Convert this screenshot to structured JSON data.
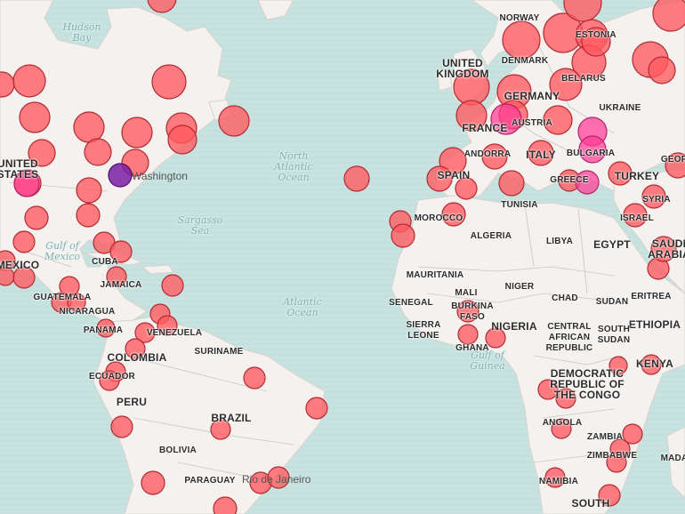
{
  "colors": {
    "ocean": "#c8e3df",
    "land": "#f4f1ee",
    "border": "#c9c5c2",
    "marker_fill": "#ff5a5f",
    "marker_stroke": "#b32a33",
    "marker_pink": "#ff3c96",
    "marker_purple": "#7a1fa3"
  },
  "water_labels": [
    {
      "id": "hudson-bay",
      "text": "Hudson\nBay"
    },
    {
      "id": "north-atlantic",
      "text": "North\nAtlantic\nOcean"
    },
    {
      "id": "sargasso",
      "text": "Sargasso\nSea"
    },
    {
      "id": "gulf-mexico",
      "text": "Gulf of\nMexico"
    },
    {
      "id": "atlantic",
      "text": "Atlantic\nOcean"
    },
    {
      "id": "gulf-guinea",
      "text": "Gulf of\nGuinea"
    }
  ],
  "country_labels": [
    {
      "id": "norway",
      "text": "NORWAY"
    },
    {
      "id": "estonia",
      "text": "ESTONIA"
    },
    {
      "id": "uk",
      "text": "UNITED\nKINGDOM",
      "big": true
    },
    {
      "id": "denmark",
      "text": "DENMARK"
    },
    {
      "id": "belarus",
      "text": "BELARUS"
    },
    {
      "id": "germany",
      "text": "GERMANY",
      "big": true
    },
    {
      "id": "ukraine",
      "text": "UKRAINE"
    },
    {
      "id": "austria",
      "text": "AUSTRIA"
    },
    {
      "id": "france",
      "text": "FRANCE",
      "big": true
    },
    {
      "id": "andorra",
      "text": "ANDORRA"
    },
    {
      "id": "italy",
      "text": "ITALY",
      "big": true
    },
    {
      "id": "bulgaria",
      "text": "BULGARIA"
    },
    {
      "id": "spain",
      "text": "SPAIN",
      "big": true
    },
    {
      "id": "greece",
      "text": "GREECE"
    },
    {
      "id": "turkey",
      "text": "TURKEY",
      "big": true
    },
    {
      "id": "georgia",
      "text": "GEOR"
    },
    {
      "id": "tunisia",
      "text": "TUNISIA"
    },
    {
      "id": "syria",
      "text": "SYRIA"
    },
    {
      "id": "israel",
      "text": "ISRAEL"
    },
    {
      "id": "morocco",
      "text": "MOROCCO"
    },
    {
      "id": "algeria",
      "text": "ALGERIA"
    },
    {
      "id": "libya",
      "text": "LIBYA"
    },
    {
      "id": "egypt",
      "text": "EGYPT",
      "big": true
    },
    {
      "id": "saudi",
      "text": "SAUDI\nARABIA",
      "big": true
    },
    {
      "id": "mauritania",
      "text": "MAURITANIA"
    },
    {
      "id": "mali",
      "text": "MALI"
    },
    {
      "id": "niger",
      "text": "NIGER"
    },
    {
      "id": "chad",
      "text": "CHAD"
    },
    {
      "id": "sudan",
      "text": "SUDAN"
    },
    {
      "id": "eritrea",
      "text": "ERITREA"
    },
    {
      "id": "senegal",
      "text": "SENEGAL"
    },
    {
      "id": "burkina",
      "text": "BURKINA\nFASO"
    },
    {
      "id": "ethiopia",
      "text": "ETHIOPIA",
      "big": true
    },
    {
      "id": "sierra-leone",
      "text": "SIERRA\nLEONE"
    },
    {
      "id": "nigeria",
      "text": "NIGERIA",
      "big": true
    },
    {
      "id": "car",
      "text": "CENTRAL\nAFRICAN\nREPUBLIC"
    },
    {
      "id": "south-sudan",
      "text": "SOUTH\nSUDAN"
    },
    {
      "id": "ghana",
      "text": "GHANA"
    },
    {
      "id": "drc",
      "text": "DEMOCRATIC\nREPUBLIC OF\nTHE CONGO",
      "big": true
    },
    {
      "id": "kenya",
      "text": "KENYA",
      "big": true
    },
    {
      "id": "angola",
      "text": "ANGOLA"
    },
    {
      "id": "zambia",
      "text": "ZAMBIA"
    },
    {
      "id": "zimbabwe",
      "text": "ZIMBABWE"
    },
    {
      "id": "madagascar",
      "text": "MADA"
    },
    {
      "id": "namibia",
      "text": "NAMIBIA"
    },
    {
      "id": "south-africa",
      "text": "SOUTH",
      "big": true
    },
    {
      "id": "usa",
      "text": "UNITED\nSTATES",
      "big": true
    },
    {
      "id": "mexico",
      "text": "MEXICO",
      "big": true
    },
    {
      "id": "cuba",
      "text": "CUBA"
    },
    {
      "id": "jamaica",
      "text": "JAMAICA"
    },
    {
      "id": "guatemala",
      "text": "GUATEMALA"
    },
    {
      "id": "nicaragua",
      "text": "NICARAGUA"
    },
    {
      "id": "panama",
      "text": "PANAMA"
    },
    {
      "id": "venezuela",
      "text": "VENEZUELA"
    },
    {
      "id": "suriname",
      "text": "SURINAME"
    },
    {
      "id": "colombia",
      "text": "COLOMBIA",
      "big": true
    },
    {
      "id": "ecuador",
      "text": "ECUADOR"
    },
    {
      "id": "peru",
      "text": "PERU",
      "big": true
    },
    {
      "id": "brazil",
      "text": "BRAZIL",
      "big": true
    },
    {
      "id": "bolivia",
      "text": "BOLIVIA"
    },
    {
      "id": "paraguay",
      "text": "PARAGUAY"
    }
  ],
  "city_labels": [
    {
      "id": "washington",
      "text": "Washington"
    },
    {
      "id": "rio",
      "text": "Rio de Janeiro"
    }
  ]
}
